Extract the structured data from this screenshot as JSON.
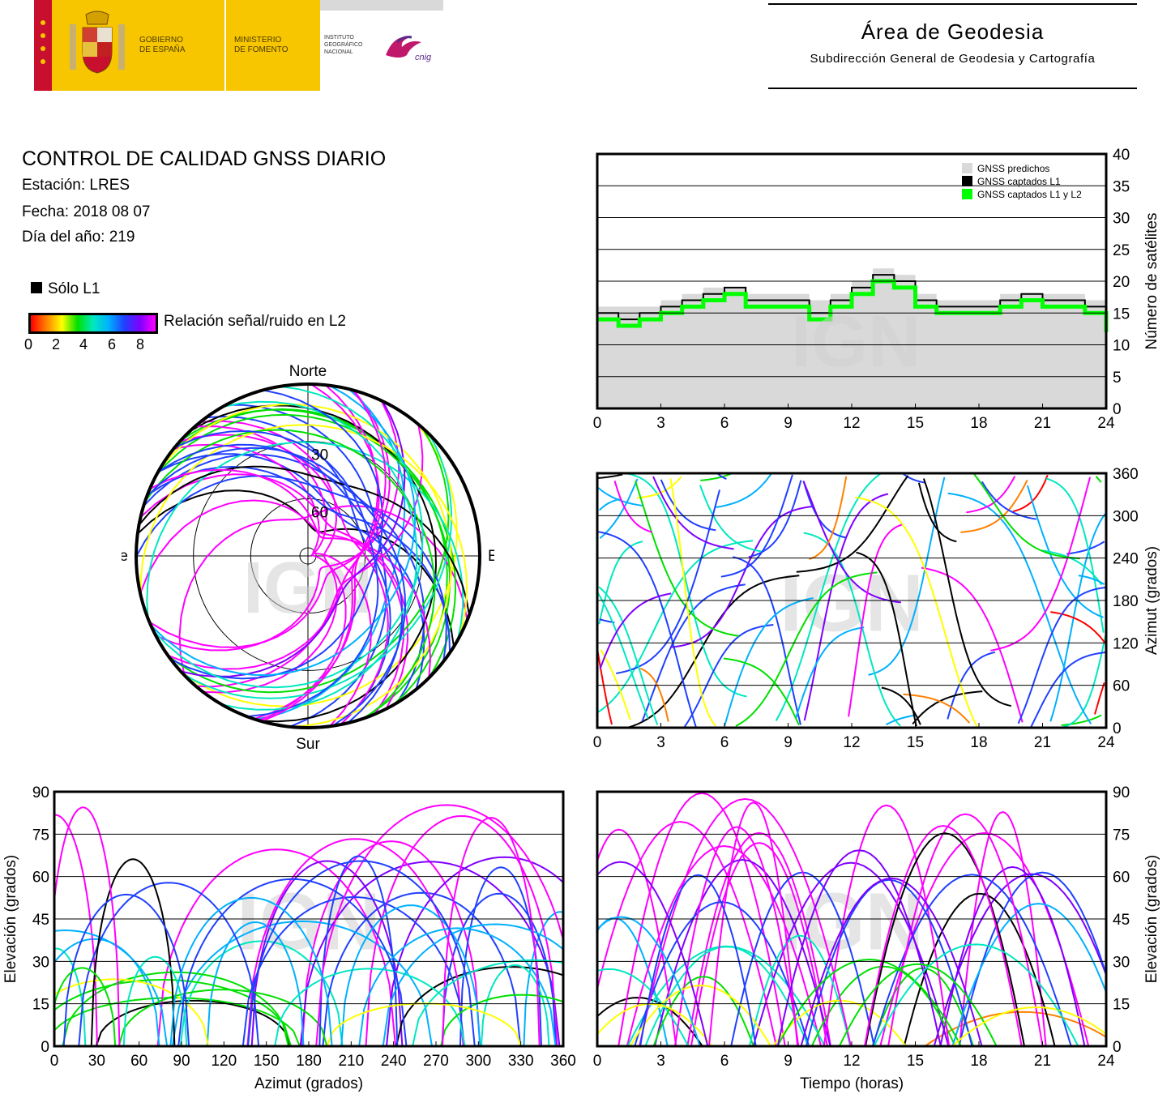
{
  "header": {
    "gobierno": [
      "GOBIERNO",
      "DE ESPAÑA"
    ],
    "ministerio": [
      "MINISTERIO",
      "DE FOMENTO"
    ],
    "instituto": [
      "INSTITUTO",
      "GEOGRÁFICO",
      "NACIONAL"
    ],
    "cnig": "cnig",
    "area_title": "Área de Geodesia",
    "area_subtitle": "Subdirección General de Geodesia y Cartografía"
  },
  "report": {
    "title": "CONTROL DE CALIDAD GNSS DIARIO",
    "station": "Estación: LRES",
    "date": "Fecha: 2018 08 07",
    "doy": "Día del año: 219",
    "solo_l1": "Sólo L1",
    "snr_label": "Relación señal/ruido en L2",
    "snr_ticks": [
      "0",
      "2",
      "4",
      "6",
      "8"
    ]
  },
  "colors": {
    "snr_scale": [
      "#ff0000",
      "#ff8000",
      "#ffff00",
      "#00e000",
      "#00e8c0",
      "#00b0ff",
      "#2040ff",
      "#8000ff",
      "#ff00ff"
    ],
    "l1_only": "#000000",
    "predicted": "#d9d9d9",
    "captured_l1_l2": "#00ff00"
  },
  "watermark": "IGN",
  "chart_data": [
    {
      "id": "skyplot",
      "type": "scatter",
      "description_labels": {
        "north": "Norte",
        "south": "Sur",
        "east": "Este",
        "west": "Oeste"
      },
      "elevation_rings": [
        "30",
        "60"
      ],
      "grid": true
    },
    {
      "id": "satellite_count",
      "type": "area",
      "ylabel": "Número de satélites",
      "xlim": [
        0,
        24
      ],
      "ylim": [
        0,
        40
      ],
      "xticks": [
        "0",
        "3",
        "6",
        "9",
        "12",
        "15",
        "18",
        "21",
        "24"
      ],
      "yticks": [
        "0",
        "5",
        "10",
        "15",
        "20",
        "25",
        "30",
        "35",
        "40"
      ],
      "grid": true,
      "legend": [
        "GNSS predichos",
        "GNSS captados L1",
        "GNSS captados L1 y L2"
      ],
      "legend_position": "top-right",
      "series": [
        {
          "name": "GNSS predichos",
          "x": [
            0,
            1,
            2,
            3,
            4,
            5,
            6,
            7,
            8,
            9,
            10,
            11,
            12,
            13,
            14,
            15,
            16,
            17,
            18,
            19,
            20,
            21,
            22,
            23,
            24
          ],
          "values": [
            16,
            16,
            16,
            17,
            18,
            19,
            19,
            18,
            18,
            18,
            17,
            18,
            20,
            22,
            21,
            18,
            17,
            17,
            17,
            18,
            18,
            18,
            18,
            17,
            15
          ]
        },
        {
          "name": "GNSS captados L1",
          "x": [
            0,
            1,
            2,
            3,
            4,
            5,
            6,
            7,
            8,
            9,
            10,
            11,
            12,
            13,
            14,
            15,
            16,
            17,
            18,
            19,
            20,
            21,
            22,
            23,
            24
          ],
          "values": [
            15,
            14,
            15,
            16,
            17,
            18,
            19,
            17,
            17,
            17,
            15,
            17,
            19,
            21,
            20,
            17,
            16,
            16,
            16,
            17,
            18,
            17,
            17,
            16,
            14
          ]
        },
        {
          "name": "GNSS captados L1 y L2",
          "x": [
            0,
            1,
            2,
            3,
            4,
            5,
            6,
            7,
            8,
            9,
            10,
            11,
            12,
            13,
            14,
            15,
            16,
            17,
            18,
            19,
            20,
            21,
            22,
            23,
            24
          ],
          "values": [
            14,
            13,
            14,
            15,
            16,
            17,
            18,
            16,
            16,
            16,
            14,
            16,
            18,
            20,
            19,
            16,
            15,
            15,
            15,
            16,
            17,
            16,
            16,
            15,
            12
          ]
        }
      ]
    },
    {
      "id": "azimuth_time",
      "type": "scatter",
      "ylabel": "Azimut (grados)",
      "xlim": [
        0,
        24
      ],
      "ylim": [
        0,
        360
      ],
      "xticks": [
        "0",
        "3",
        "6",
        "9",
        "12",
        "15",
        "18",
        "21",
        "24"
      ],
      "yticks": [
        "0",
        "60",
        "120",
        "180",
        "240",
        "300",
        "360"
      ],
      "grid": true
    },
    {
      "id": "elevation_azimuth",
      "type": "scatter",
      "xlabel": "Azimut (grados)",
      "ylabel": "Elevación (grados)",
      "xlim": [
        0,
        360
      ],
      "ylim": [
        0,
        90
      ],
      "xticks": [
        "0",
        "30",
        "60",
        "90",
        "120",
        "150",
        "180",
        "210",
        "240",
        "270",
        "300",
        "330",
        "360"
      ],
      "yticks": [
        "0",
        "15",
        "30",
        "45",
        "60",
        "75",
        "90"
      ],
      "grid": true
    },
    {
      "id": "elevation_time",
      "type": "scatter",
      "xlabel": "Tiempo (horas)",
      "ylabel": "Elevación (grados)",
      "xlim": [
        0,
        24
      ],
      "ylim": [
        0,
        90
      ],
      "xticks": [
        "0",
        "3",
        "6",
        "9",
        "12",
        "15",
        "18",
        "21",
        "24"
      ],
      "yticks": [
        "0",
        "15",
        "30",
        "45",
        "60",
        "75",
        "90"
      ],
      "grid": true
    }
  ]
}
